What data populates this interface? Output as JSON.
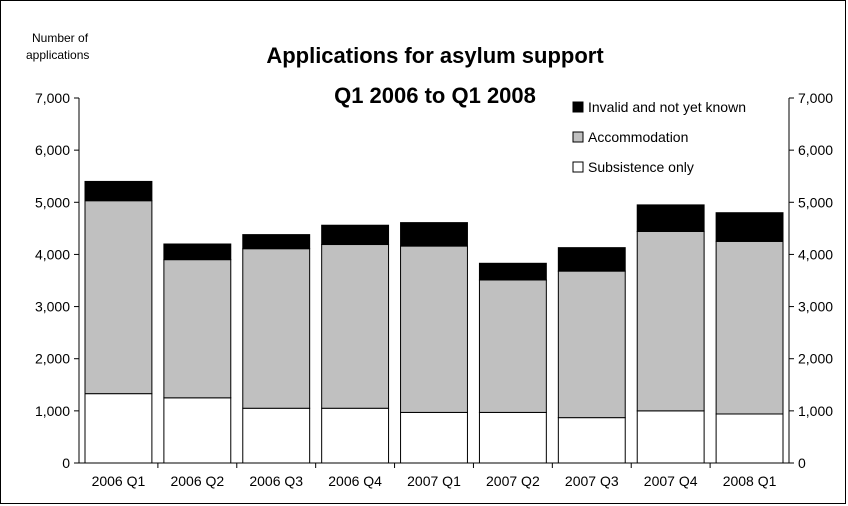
{
  "chart_data": {
    "type": "bar",
    "stacked": true,
    "title": "Applications for asylum support",
    "subtitle": "Q1 2006 to Q1 2008",
    "ylabel": "Number of applications",
    "ylim": [
      0,
      7000
    ],
    "yticks": [
      "0",
      "1,000",
      "2,000",
      "3,000",
      "4,000",
      "5,000",
      "6,000",
      "7,000"
    ],
    "categories": [
      "2006 Q1",
      "2006 Q2",
      "2006 Q3",
      "2006 Q4",
      "2007 Q1",
      "2007 Q2",
      "2007 Q3",
      "2007 Q4",
      "2008 Q1"
    ],
    "series": [
      {
        "name": "Subsistence only",
        "color": "#ffffff",
        "values": [
          1330,
          1250,
          1050,
          1050,
          970,
          970,
          870,
          1000,
          940
        ]
      },
      {
        "name": "Accommodation",
        "color": "#c0c0c0",
        "values": [
          3700,
          2650,
          3060,
          3140,
          3190,
          2540,
          2810,
          3440,
          3310
        ]
      },
      {
        "name": "Invalid and not yet known",
        "color": "#000000",
        "values": [
          370,
          300,
          270,
          370,
          450,
          320,
          450,
          510,
          550
        ]
      }
    ],
    "legend": {
      "position": "top-right",
      "order": [
        "Invalid and not yet known",
        "Accommodation",
        "Subsistence only"
      ]
    },
    "grid": false
  }
}
